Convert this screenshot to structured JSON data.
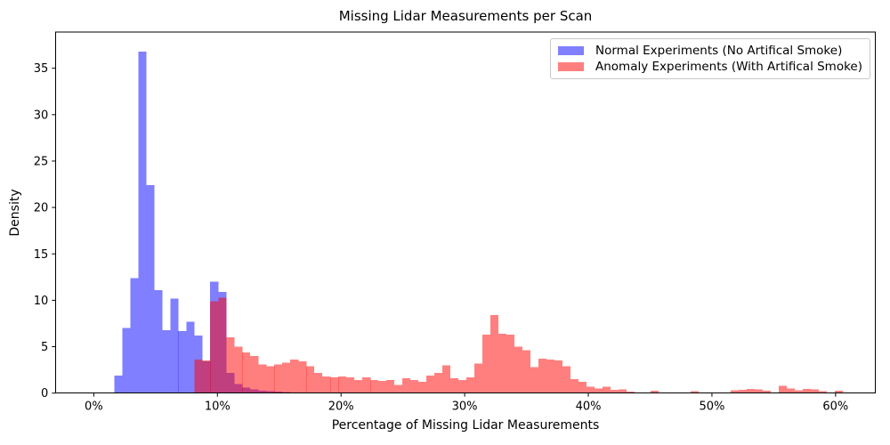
{
  "figure": {
    "background": "#ffffff",
    "spine_color": "#000000",
    "text_color": "#000000",
    "legend_border_color": "#c9c9c9"
  },
  "chart_data": {
    "type": "histogram",
    "title": "Missing Lidar Measurements per Scan",
    "xlabel": "Percentage of Missing Lidar Measurements",
    "ylabel": "Density",
    "grid": "off",
    "legend_position": "upper right",
    "xlim": [
      -3.1,
      63.2
    ],
    "ylim": [
      0,
      38.9
    ],
    "x_tick_values": [
      0,
      10,
      20,
      30,
      40,
      50,
      60
    ],
    "x_tick_labels": [
      "0%",
      "10%",
      "20%",
      "30%",
      "40%",
      "50%",
      "60%"
    ],
    "y_tick_values": [
      0,
      5,
      10,
      15,
      20,
      25,
      30,
      35
    ],
    "bin_width_percent": 0.65,
    "series": [
      {
        "name": "Normal Experiments (No Artifical Smoke)",
        "fill": "rgba(0,0,255,0.5)",
        "swatch_color": "rgba(0,0,255,0.5)",
        "bins": [
          [
            1.65,
            1.9
          ],
          [
            2.3,
            7.0
          ],
          [
            2.95,
            12.4
          ],
          [
            3.6,
            36.8
          ],
          [
            4.24,
            22.4
          ],
          [
            4.89,
            11.1
          ],
          [
            5.54,
            6.8
          ],
          [
            6.19,
            10.2
          ],
          [
            6.83,
            6.7
          ],
          [
            7.48,
            7.7
          ],
          [
            8.13,
            6.2
          ],
          [
            8.78,
            3.4
          ],
          [
            9.42,
            12.0
          ],
          [
            10.07,
            10.9
          ],
          [
            10.72,
            2.2
          ],
          [
            11.37,
            1.0
          ],
          [
            12.01,
            0.6
          ],
          [
            12.66,
            0.4
          ],
          [
            13.31,
            0.25
          ],
          [
            13.96,
            0.2
          ],
          [
            14.6,
            0.15
          ],
          [
            15.25,
            0.1
          ],
          [
            15.9,
            0.05
          ]
        ]
      },
      {
        "name": "Anomaly Experiments (With Artifical Smoke)",
        "fill": "rgba(255,0,0,0.5)",
        "swatch_color": "rgba(255,0,0,0.5)",
        "bins": [
          [
            8.13,
            3.6
          ],
          [
            8.78,
            3.5
          ],
          [
            9.42,
            9.9
          ],
          [
            10.07,
            10.3
          ],
          [
            10.72,
            6.0
          ],
          [
            11.37,
            5.0
          ],
          [
            12.01,
            4.4
          ],
          [
            12.66,
            4.0
          ],
          [
            13.31,
            3.1
          ],
          [
            13.96,
            2.9
          ],
          [
            14.6,
            3.1
          ],
          [
            15.25,
            3.3
          ],
          [
            15.9,
            3.6
          ],
          [
            16.55,
            3.4
          ],
          [
            17.19,
            2.9
          ],
          [
            17.84,
            2.2
          ],
          [
            18.49,
            1.8
          ],
          [
            19.14,
            1.7
          ],
          [
            19.78,
            1.8
          ],
          [
            20.43,
            1.7
          ],
          [
            21.08,
            1.4
          ],
          [
            21.73,
            1.7
          ],
          [
            22.37,
            1.4
          ],
          [
            23.02,
            1.3
          ],
          [
            23.67,
            1.4
          ],
          [
            24.32,
            0.9
          ],
          [
            24.96,
            1.6
          ],
          [
            25.61,
            1.4
          ],
          [
            26.26,
            1.2
          ],
          [
            26.91,
            1.9
          ],
          [
            27.55,
            2.2
          ],
          [
            28.2,
            3.0
          ],
          [
            28.85,
            1.6
          ],
          [
            29.5,
            1.4
          ],
          [
            30.14,
            1.7
          ],
          [
            30.79,
            3.2
          ],
          [
            31.44,
            6.3
          ],
          [
            32.09,
            8.4
          ],
          [
            32.73,
            6.4
          ],
          [
            33.38,
            6.3
          ],
          [
            34.03,
            5.0
          ],
          [
            34.68,
            4.6
          ],
          [
            35.32,
            2.8
          ],
          [
            35.97,
            3.7
          ],
          [
            36.62,
            3.6
          ],
          [
            37.27,
            3.5
          ],
          [
            37.91,
            2.9
          ],
          [
            38.56,
            1.5
          ],
          [
            39.21,
            1.2
          ],
          [
            39.86,
            0.7
          ],
          [
            40.5,
            0.5
          ],
          [
            41.15,
            0.7
          ],
          [
            41.8,
            0.35
          ],
          [
            42.45,
            0.4
          ],
          [
            43.09,
            0.15
          ],
          [
            45.04,
            0.25
          ],
          [
            48.27,
            0.2
          ],
          [
            51.51,
            0.3
          ],
          [
            52.16,
            0.35
          ],
          [
            52.81,
            0.45
          ],
          [
            53.45,
            0.4
          ],
          [
            54.1,
            0.25
          ],
          [
            55.4,
            0.8
          ],
          [
            56.04,
            0.5
          ],
          [
            56.69,
            0.3
          ],
          [
            57.34,
            0.45
          ],
          [
            57.99,
            0.4
          ],
          [
            58.63,
            0.2
          ],
          [
            59.93,
            0.25
          ]
        ]
      }
    ]
  }
}
